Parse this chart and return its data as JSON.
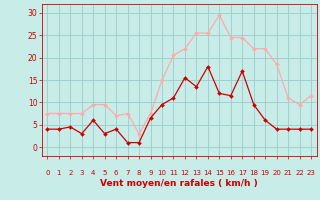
{
  "x": [
    0,
    1,
    2,
    3,
    4,
    5,
    6,
    7,
    8,
    9,
    10,
    11,
    12,
    13,
    14,
    15,
    16,
    17,
    18,
    19,
    20,
    21,
    22,
    23
  ],
  "mean_wind": [
    4,
    4,
    4.5,
    3,
    6,
    3,
    4,
    1,
    1,
    6.5,
    9.5,
    11,
    15.5,
    13.5,
    18,
    12,
    11.5,
    17,
    9.5,
    6,
    4,
    4,
    4,
    4
  ],
  "gust_wind": [
    7.5,
    7.5,
    7.5,
    7.5,
    9.5,
    9.5,
    7,
    7.5,
    3,
    7.5,
    15,
    20.5,
    22,
    25.5,
    25.5,
    29.5,
    24.5,
    24.5,
    22,
    22,
    18.5,
    11,
    9.5,
    11.5
  ],
  "mean_color": "#cc0000",
  "gust_color": "#ffaaaa",
  "bg_color": "#c8ece8",
  "grid_color": "#99cccc",
  "xlabel": "Vent moyen/en rafales ( km/h )",
  "xlabel_color": "#cc0000",
  "yticks": [
    0,
    5,
    10,
    15,
    20,
    25,
    30
  ],
  "ylim": [
    -2,
    32
  ],
  "xlim": [
    -0.5,
    23.5
  ],
  "tick_color": "#cc0000"
}
